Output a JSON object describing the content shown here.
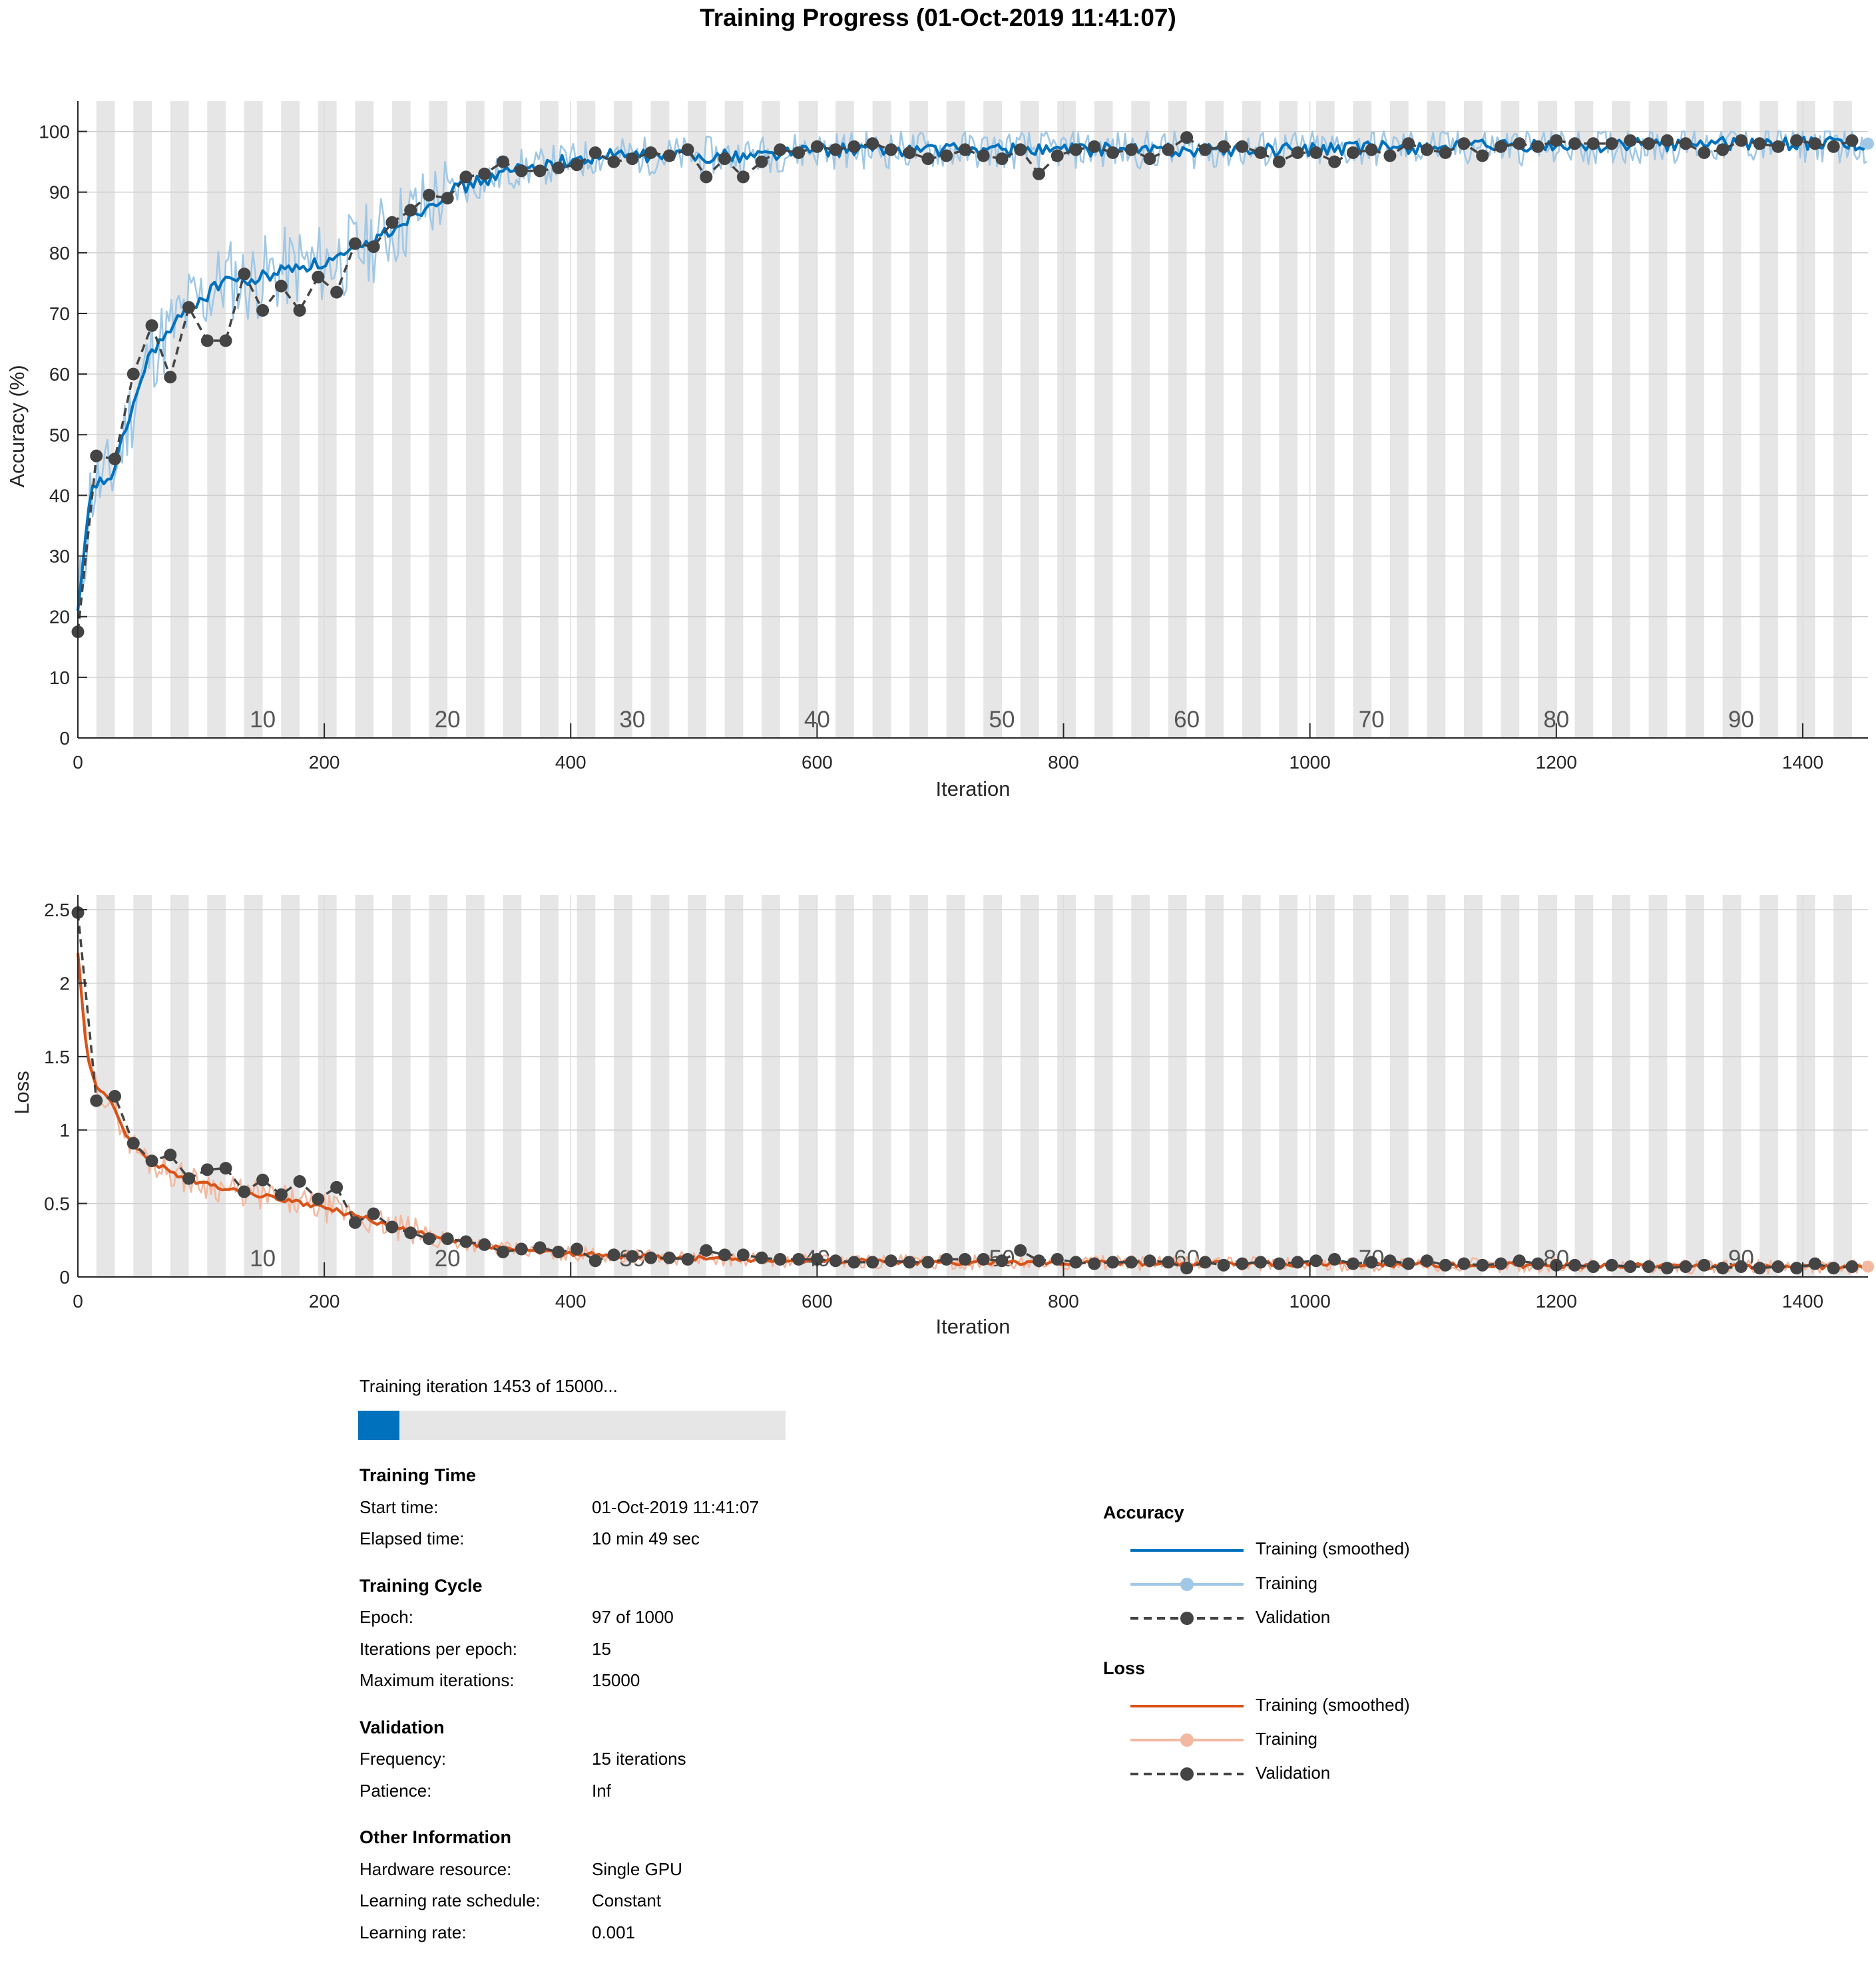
{
  "title": "Training Progress (01-Oct-2019 11:41:07)",
  "colors": {
    "train_smoothed_acc": "#0072bd",
    "train_acc": "#a0c8e6",
    "train_smoothed_loss": "#d95319",
    "train_loss": "#f3b9a0",
    "validation": "#444444",
    "epoch_band": "#e6e6e6",
    "progress_fill": "#0072bd"
  },
  "progress": {
    "text": "Training iteration 1453 of 15000...",
    "fraction": 0.0969
  },
  "info": {
    "training_time": {
      "heading": "Training Time",
      "rows": [
        {
          "label": "Start time:",
          "value": "01-Oct-2019 11:41:07"
        },
        {
          "label": "Elapsed time:",
          "value": "10 min 49 sec"
        }
      ]
    },
    "training_cycle": {
      "heading": "Training Cycle",
      "rows": [
        {
          "label": "Epoch:",
          "value": "97 of 1000"
        },
        {
          "label": "Iterations per epoch:",
          "value": "15"
        },
        {
          "label": "Maximum iterations:",
          "value": "15000"
        }
      ]
    },
    "validation": {
      "heading": "Validation",
      "rows": [
        {
          "label": "Frequency:",
          "value": "15 iterations"
        },
        {
          "label": "Patience:",
          "value": "Inf"
        }
      ]
    },
    "other": {
      "heading": "Other Information",
      "rows": [
        {
          "label": "Hardware resource:",
          "value": "Single GPU"
        },
        {
          "label": "Learning rate schedule:",
          "value": "Constant"
        },
        {
          "label": "Learning rate:",
          "value": "0.001"
        }
      ]
    }
  },
  "legend": {
    "accuracy": {
      "heading": "Accuracy",
      "items": [
        "Training (smoothed)",
        "Training",
        "Validation"
      ]
    },
    "loss": {
      "heading": "Loss",
      "items": [
        "Training (smoothed)",
        "Training",
        "Validation"
      ]
    }
  },
  "chart_data": [
    {
      "type": "line",
      "name": "accuracy",
      "xlabel": "Iteration",
      "ylabel": "Accuracy (%)",
      "xlim": [
        0,
        1453
      ],
      "ylim": [
        0,
        105
      ],
      "xticks": [
        0,
        200,
        400,
        600,
        800,
        1000,
        1200,
        1400
      ],
      "yticks": [
        0,
        10,
        20,
        30,
        40,
        50,
        60,
        70,
        80,
        90,
        100
      ],
      "epoch_labels": [
        10,
        20,
        30,
        40,
        50,
        60,
        70,
        80,
        90
      ],
      "iterations_per_epoch": 15,
      "grid": true,
      "smoothed_curve": {
        "x": [
          0,
          5,
          10,
          15,
          20,
          30,
          40,
          50,
          60,
          75,
          90,
          105,
          120,
          135,
          150,
          165,
          180,
          195,
          210,
          225,
          240,
          255,
          270,
          285,
          300,
          315,
          330,
          345,
          360,
          375,
          390,
          405,
          420,
          450,
          480,
          510,
          540,
          600,
          700,
          800,
          900,
          1000,
          1100,
          1200,
          1300,
          1400,
          1453
        ],
        "y": [
          20,
          30,
          40,
          42,
          42,
          44,
          52,
          58,
          64,
          67,
          71,
          73,
          76,
          75,
          76,
          77,
          78,
          78,
          79,
          80,
          82,
          84,
          86,
          88,
          90,
          91,
          92,
          93,
          94,
          94,
          95,
          95,
          96,
          96,
          96,
          96,
          96,
          97,
          97,
          97,
          97,
          97,
          97.5,
          97.5,
          98,
          98,
          98
        ]
      },
      "validation": {
        "x": [
          0,
          15,
          30,
          45,
          60,
          75,
          90,
          105,
          120,
          135,
          150,
          165,
          180,
          195,
          210,
          225,
          240,
          255,
          270,
          285,
          300,
          315,
          330,
          345,
          360,
          375,
          390,
          405,
          420,
          435,
          450,
          465,
          480,
          495,
          510,
          525,
          540,
          555,
          570,
          585,
          600,
          615,
          630,
          645,
          660,
          675,
          690,
          705,
          720,
          735,
          750,
          765,
          780,
          795,
          810,
          825,
          840,
          855,
          870,
          885,
          900,
          915,
          930,
          945,
          960,
          975,
          990,
          1005,
          1020,
          1035,
          1050,
          1065,
          1080,
          1095,
          1110,
          1125,
          1140,
          1155,
          1170,
          1185,
          1200,
          1215,
          1230,
          1245,
          1260,
          1275,
          1290,
          1305,
          1320,
          1335,
          1350,
          1365,
          1380,
          1395,
          1410,
          1425,
          1440
        ],
        "y": [
          17.5,
          46.5,
          46,
          60,
          68,
          59.5,
          71,
          65.5,
          65.5,
          76.5,
          70.5,
          74.5,
          70.5,
          76,
          73.5,
          81.5,
          81,
          85,
          87,
          89.5,
          89,
          92.5,
          93,
          95,
          93.5,
          93.5,
          94,
          94.5,
          96.5,
          95,
          95.5,
          96.5,
          96,
          97,
          92.5,
          95.5,
          92.5,
          95,
          97,
          96.5,
          97.5,
          97,
          97.5,
          98,
          97,
          96.5,
          95.5,
          96,
          97,
          96,
          95.5,
          97,
          93,
          96,
          97,
          97.5,
          96.5,
          97,
          95.5,
          97,
          99,
          97,
          97.5,
          97.5,
          96.5,
          95,
          96.5,
          96.5,
          95,
          96.5,
          97,
          96,
          98,
          97,
          96.5,
          98,
          96,
          97.5,
          98,
          97.5,
          98.5,
          98,
          98,
          98,
          98.5,
          98,
          98.5,
          98,
          96.5,
          97,
          98.5,
          98,
          97.5,
          98.5,
          98,
          97.5,
          98.5
        ]
      }
    },
    {
      "type": "line",
      "name": "loss",
      "xlabel": "Iteration",
      "ylabel": "Loss",
      "xlim": [
        0,
        1453
      ],
      "ylim": [
        0,
        2.6
      ],
      "xticks": [
        0,
        200,
        400,
        600,
        800,
        1000,
        1200,
        1400
      ],
      "yticks": [
        0,
        0.5,
        1,
        1.5,
        2,
        2.5
      ],
      "epoch_labels": [
        10,
        20,
        30,
        40,
        50,
        60,
        70,
        80,
        90
      ],
      "iterations_per_epoch": 15,
      "grid": true,
      "smoothed_curve": {
        "x": [
          0,
          5,
          10,
          15,
          20,
          30,
          40,
          50,
          60,
          75,
          90,
          105,
          120,
          135,
          150,
          165,
          180,
          195,
          210,
          225,
          240,
          255,
          270,
          285,
          300,
          315,
          330,
          345,
          360,
          375,
          390,
          405,
          420,
          450,
          480,
          510,
          540,
          600,
          700,
          800,
          900,
          1000,
          1100,
          1200,
          1300,
          1400,
          1453
        ],
        "y": [
          2.2,
          1.7,
          1.4,
          1.3,
          1.25,
          1.15,
          0.95,
          0.85,
          0.78,
          0.72,
          0.66,
          0.63,
          0.6,
          0.57,
          0.55,
          0.53,
          0.5,
          0.48,
          0.45,
          0.42,
          0.38,
          0.34,
          0.31,
          0.28,
          0.25,
          0.23,
          0.21,
          0.19,
          0.18,
          0.17,
          0.16,
          0.16,
          0.15,
          0.14,
          0.13,
          0.13,
          0.12,
          0.11,
          0.1,
          0.1,
          0.09,
          0.09,
          0.08,
          0.08,
          0.07,
          0.07,
          0.07
        ]
      },
      "validation": {
        "x": [
          0,
          15,
          30,
          45,
          60,
          75,
          90,
          105,
          120,
          135,
          150,
          165,
          180,
          195,
          210,
          225,
          240,
          255,
          270,
          285,
          300,
          315,
          330,
          345,
          360,
          375,
          390,
          405,
          420,
          435,
          450,
          465,
          480,
          495,
          510,
          525,
          540,
          555,
          570,
          585,
          600,
          615,
          630,
          645,
          660,
          675,
          690,
          705,
          720,
          735,
          750,
          765,
          780,
          795,
          810,
          825,
          840,
          855,
          870,
          885,
          900,
          915,
          930,
          945,
          960,
          975,
          990,
          1005,
          1020,
          1035,
          1050,
          1065,
          1080,
          1095,
          1110,
          1125,
          1140,
          1155,
          1170,
          1185,
          1200,
          1215,
          1230,
          1245,
          1260,
          1275,
          1290,
          1305,
          1320,
          1335,
          1350,
          1365,
          1380,
          1395,
          1410,
          1425,
          1440
        ],
        "y": [
          2.48,
          1.2,
          1.23,
          0.91,
          0.79,
          0.83,
          0.67,
          0.73,
          0.74,
          0.58,
          0.66,
          0.56,
          0.65,
          0.53,
          0.61,
          0.37,
          0.43,
          0.34,
          0.3,
          0.26,
          0.26,
          0.24,
          0.22,
          0.17,
          0.19,
          0.2,
          0.17,
          0.19,
          0.11,
          0.15,
          0.14,
          0.13,
          0.13,
          0.12,
          0.18,
          0.15,
          0.15,
          0.13,
          0.12,
          0.12,
          0.12,
          0.11,
          0.1,
          0.1,
          0.11,
          0.1,
          0.1,
          0.12,
          0.12,
          0.12,
          0.11,
          0.18,
          0.11,
          0.12,
          0.1,
          0.09,
          0.1,
          0.1,
          0.11,
          0.1,
          0.06,
          0.1,
          0.08,
          0.09,
          0.1,
          0.09,
          0.1,
          0.11,
          0.12,
          0.09,
          0.1,
          0.11,
          0.09,
          0.11,
          0.08,
          0.09,
          0.08,
          0.09,
          0.11,
          0.09,
          0.08,
          0.08,
          0.07,
          0.08,
          0.07,
          0.07,
          0.06,
          0.07,
          0.08,
          0.06,
          0.07,
          0.06,
          0.07,
          0.06,
          0.09,
          0.06,
          0.07
        ]
      }
    }
  ]
}
